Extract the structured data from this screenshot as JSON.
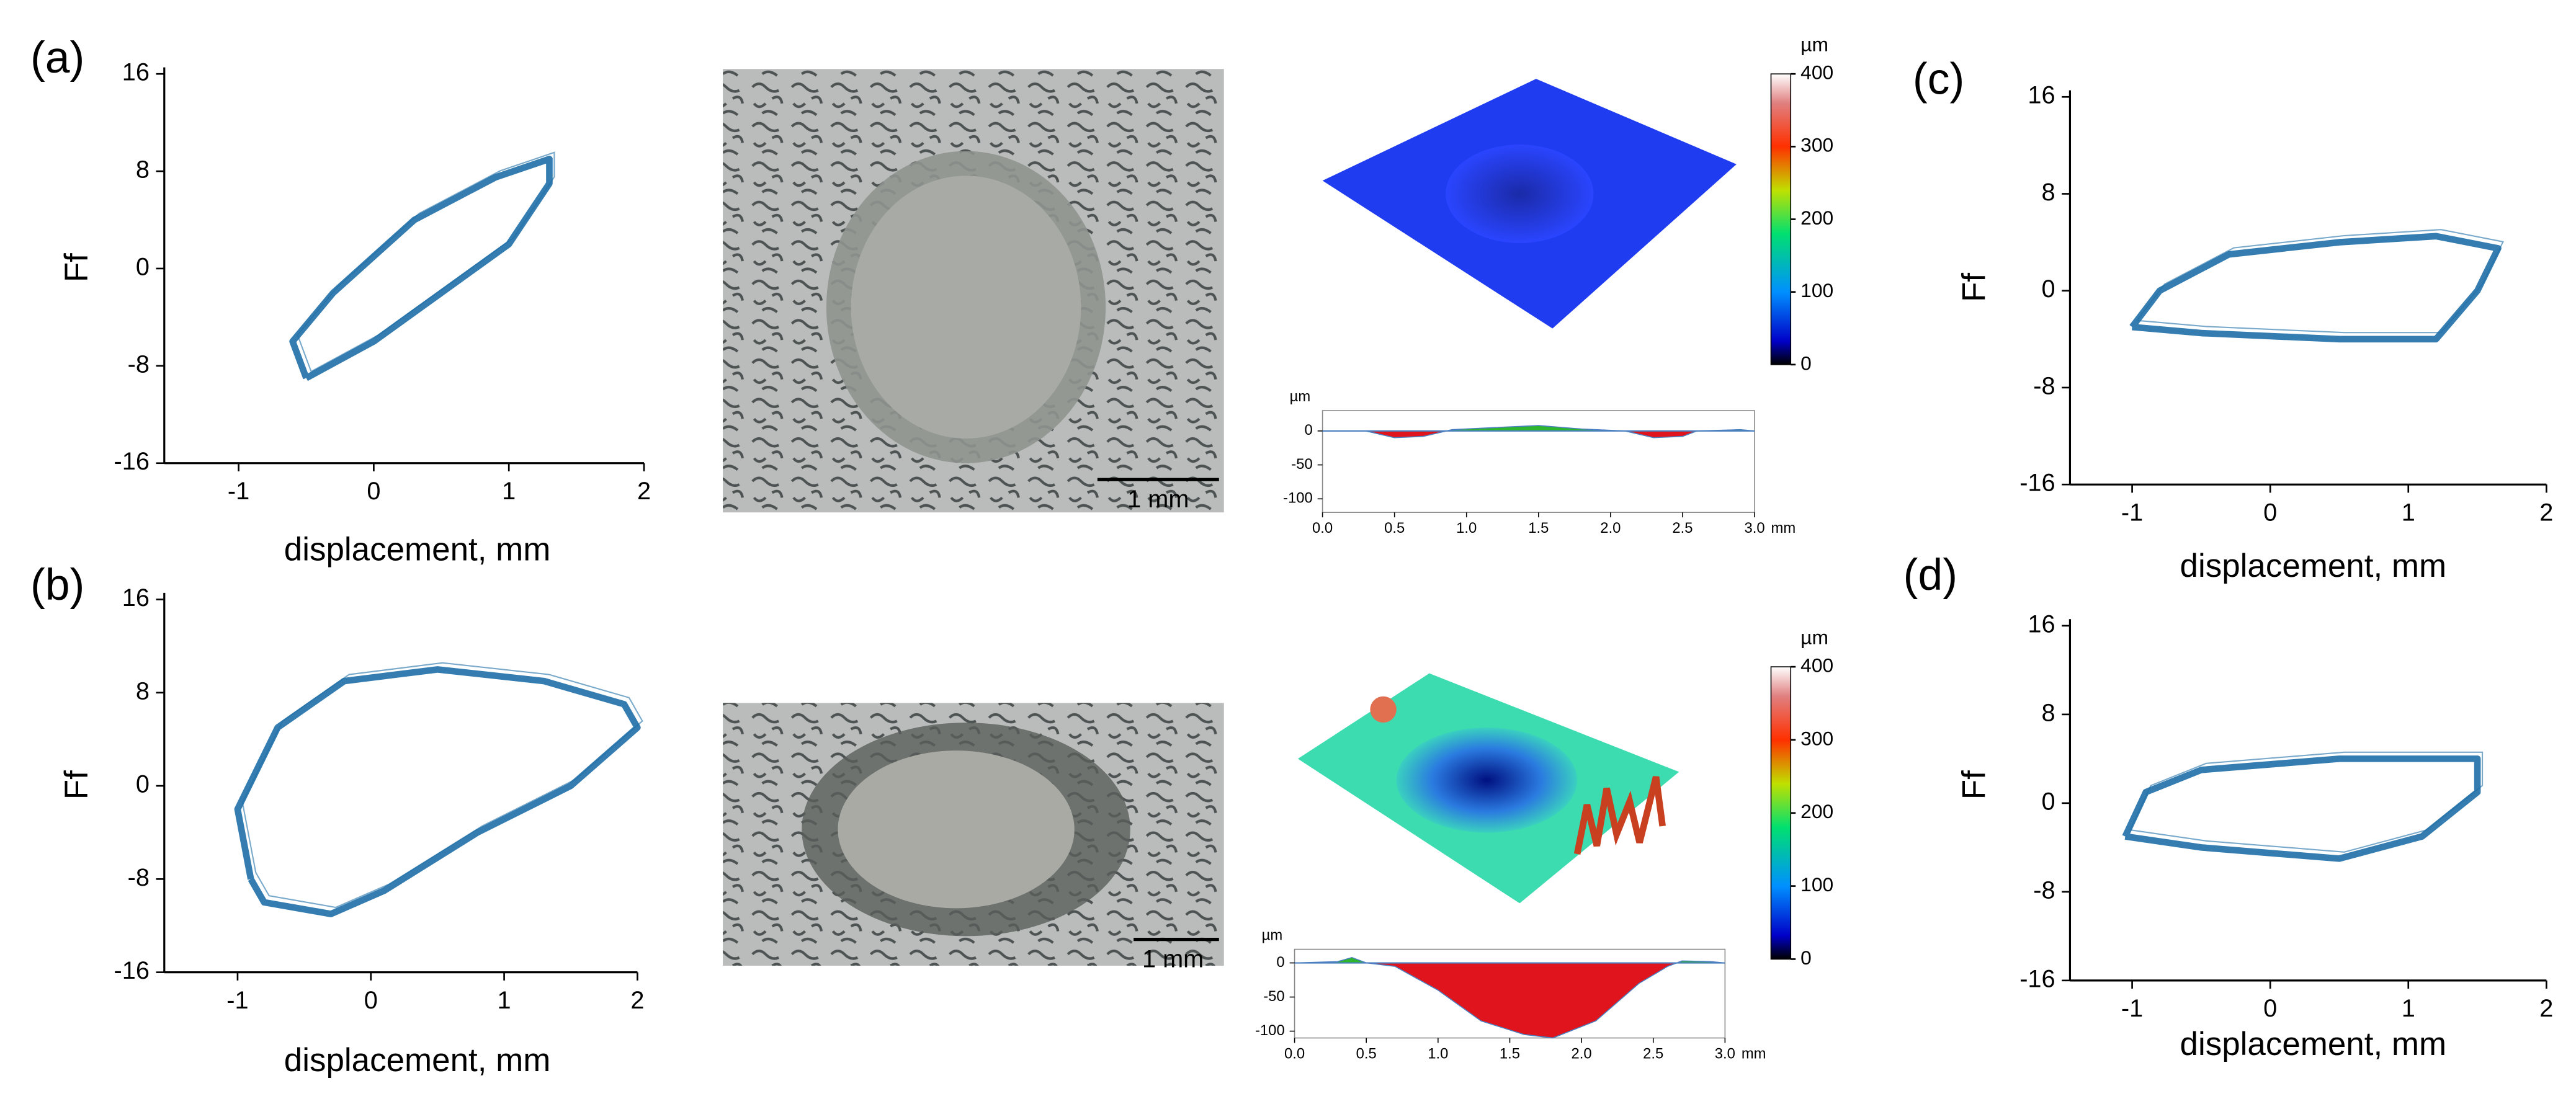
{
  "panel_labels": [
    "(a)",
    "(b)",
    "(c)",
    "(d)"
  ],
  "micrographs": [
    {
      "scale_bar": "1 mm"
    },
    {
      "scale_bar": "1 mm"
    }
  ],
  "chart_data": [
    {
      "type": "line",
      "xlabel": "displacement, mm",
      "ylabel": "Ff",
      "color": "#1f6fa8",
      "x": [
        -0.5,
        -0.6,
        -0.3,
        0.3,
        0.9,
        1.3,
        1.3,
        1.0,
        0.5,
        0.0,
        -0.5
      ],
      "values": [
        -9,
        -6,
        -2,
        4,
        7.5,
        9,
        7,
        2,
        -2,
        -6,
        -9
      ],
      "xlim": [
        -1.55,
        2
      ],
      "ylim": [
        -16,
        16
      ],
      "xticks": [
        -1,
        0,
        1,
        2
      ],
      "yticks": [
        -16,
        -8,
        0,
        8,
        16
      ]
    },
    {
      "type": "line",
      "xlabel": "displacement, mm",
      "ylabel": "Ff",
      "color": "#1f6fa8",
      "x": [
        -0.9,
        -1.0,
        -0.7,
        -0.2,
        0.5,
        1.3,
        1.9,
        2.0,
        1.5,
        0.8,
        0.1,
        -0.3,
        -0.8,
        -0.9
      ],
      "values": [
        -8,
        -2,
        5,
        9,
        10,
        9,
        7,
        5,
        0,
        -4,
        -9,
        -11,
        -10,
        -8
      ],
      "xlim": [
        -1.55,
        2
      ],
      "ylim": [
        -16,
        16
      ],
      "xticks": [
        -1,
        0,
        1,
        2
      ],
      "yticks": [
        -16,
        -8,
        0,
        8,
        16
      ]
    },
    {
      "type": "line",
      "xlabel": "displacement, mm",
      "ylabel": "Ff",
      "color": "#1f6fa8",
      "x": [
        -1.0,
        -0.8,
        -0.3,
        0.5,
        1.2,
        1.65,
        1.5,
        1.2,
        0.5,
        -0.5,
        -1.0
      ],
      "values": [
        -3,
        0,
        3,
        4,
        4.5,
        3.5,
        0,
        -4,
        -4,
        -3.5,
        -3
      ],
      "xlim": [
        -1.45,
        2
      ],
      "ylim": [
        -16,
        16
      ],
      "xticks": [
        -1,
        0,
        1,
        2
      ],
      "yticks": [
        -16,
        -8,
        0,
        8,
        16
      ]
    },
    {
      "type": "line",
      "xlabel": "displacement, mm",
      "ylabel": "Ff",
      "color": "#1f6fa8",
      "x": [
        -1.05,
        -0.9,
        -0.5,
        0.5,
        1.5,
        1.5,
        1.1,
        0.5,
        -0.5,
        -1.05
      ],
      "values": [
        -3,
        1,
        3,
        4,
        4,
        1,
        -3,
        -5,
        -4,
        -3
      ],
      "xlim": [
        -1.45,
        2
      ],
      "ylim": [
        -16,
        16
      ],
      "xticks": [
        -1,
        0,
        1,
        2
      ],
      "yticks": [
        -16,
        -8,
        0,
        8,
        16
      ]
    },
    {
      "type": "colorbar",
      "unit": "µm",
      "ylim": [
        0,
        400
      ],
      "yticks": [
        0,
        100,
        200,
        300,
        400
      ]
    },
    {
      "type": "colorbar",
      "unit": "µm",
      "ylim": [
        0,
        400
      ],
      "yticks": [
        0,
        100,
        200,
        300,
        400
      ]
    },
    {
      "type": "area",
      "ylabel": "µm",
      "xlabel": "mm",
      "colors": {
        "positive": "#2db52d",
        "negative": "#e0141c",
        "line": "#4a7fc0"
      },
      "x": [
        0,
        0.3,
        0.5,
        0.7,
        0.9,
        1.2,
        1.5,
        1.8,
        2.1,
        2.3,
        2.5,
        2.6,
        2.9,
        3.0
      ],
      "values": [
        0,
        0,
        -10,
        -8,
        2,
        5,
        8,
        3,
        0,
        -10,
        -8,
        0,
        2,
        0
      ],
      "xlim": [
        0,
        3
      ],
      "ylim": [
        -120,
        30
      ],
      "xticks": [
        {
          "value": 0,
          "label": "0.0"
        },
        0.5,
        {
          "value": 1,
          "label": "1.0"
        },
        1.5,
        {
          "value": 2,
          "label": "2.0"
        },
        2.5,
        {
          "value": 3,
          "label": "3.0"
        }
      ],
      "yticks": [
        0,
        -50,
        -100
      ]
    },
    {
      "type": "area",
      "ylabel": "µm",
      "xlabel": "mm",
      "colors": {
        "positive": "#2db52d",
        "negative": "#e0141c",
        "line": "#4a7fc0"
      },
      "x": [
        0,
        0.3,
        0.4,
        0.5,
        0.7,
        1.0,
        1.3,
        1.6,
        1.8,
        2.1,
        2.4,
        2.6,
        2.7,
        2.9,
        3.0
      ],
      "values": [
        0,
        2,
        8,
        0,
        -5,
        -40,
        -85,
        -105,
        -110,
        -85,
        -30,
        -5,
        3,
        2,
        0
      ],
      "xlim": [
        0,
        3
      ],
      "ylim": [
        -110,
        20
      ],
      "xticks": [
        {
          "value": 0,
          "label": "0.0"
        },
        0.5,
        {
          "value": 1,
          "label": "1.0"
        },
        1.5,
        {
          "value": 2,
          "label": "2.0"
        },
        2.5,
        {
          "value": 3,
          "label": "3.0"
        }
      ],
      "yticks": [
        0,
        -50,
        -100
      ]
    }
  ]
}
